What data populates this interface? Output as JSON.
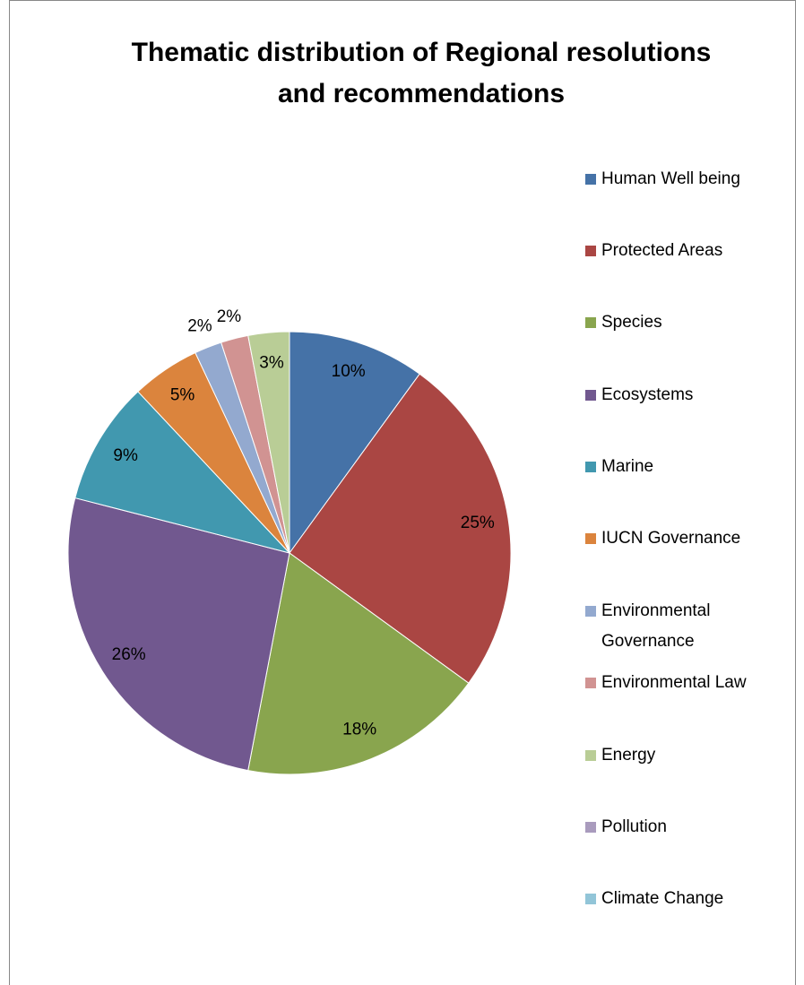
{
  "chart_data": {
    "type": "pie",
    "title": "Thematic distribution of Regional resolutions and recommendations",
    "categories": [
      "Human Well being",
      "Protected Areas",
      "Species",
      "Ecosystems",
      "Marine",
      "IUCN Governance",
      "Environmental Governance",
      "Environmental Law",
      "Energy",
      "Pollution",
      "Climate Change"
    ],
    "values": [
      10,
      25,
      18,
      26,
      9,
      5,
      2,
      2,
      3,
      0,
      0
    ],
    "value_labels": [
      "10%",
      "25%",
      "18%",
      "26%",
      "9%",
      "5%",
      "2%",
      "2%",
      "3%",
      null,
      null
    ],
    "colors": [
      "#4572a7",
      "#aa4643",
      "#89a54e",
      "#71588f",
      "#4198af",
      "#db843d",
      "#93a9cf",
      "#d19392",
      "#b9cd96",
      "#a99bbd",
      "#92c5d8"
    ],
    "legend": "right"
  }
}
